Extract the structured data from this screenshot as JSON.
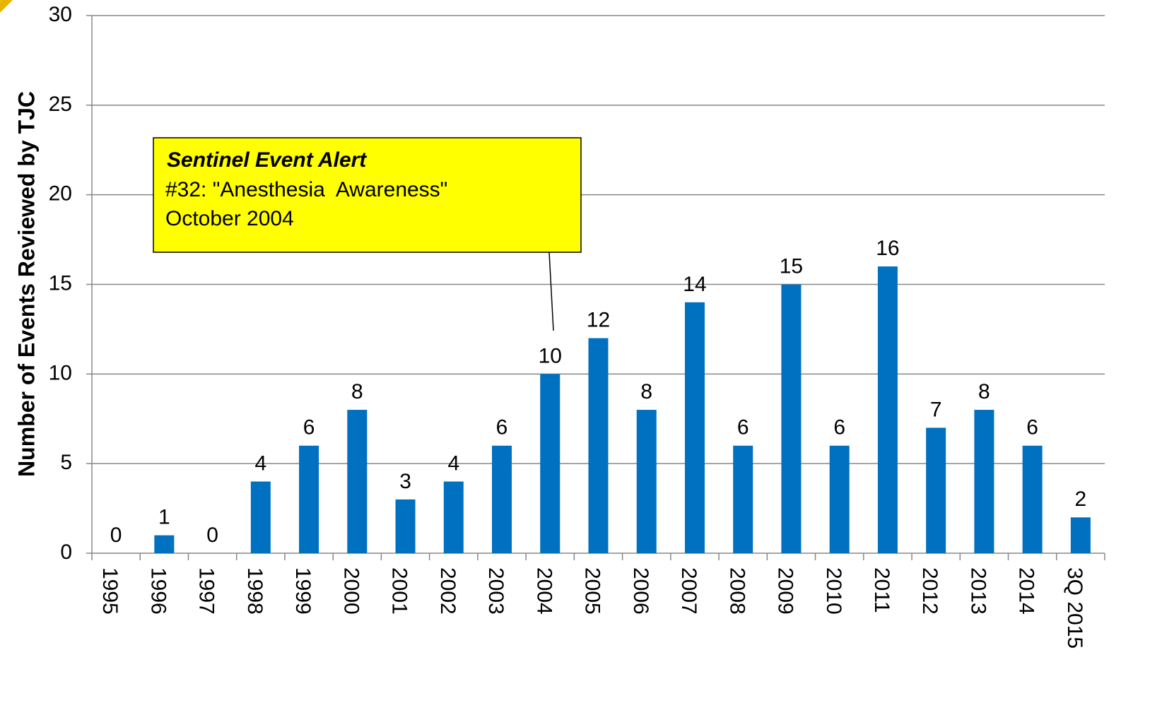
{
  "chart_data": {
    "type": "bar",
    "y_label": "Number of Events Reviewed by TJC",
    "categories": [
      "1995",
      "1996",
      "1997",
      "1998",
      "1999",
      "2000",
      "2001",
      "2002",
      "2003",
      "2004",
      "2005",
      "2006",
      "2007",
      "2008",
      "2009",
      "2010",
      "2011",
      "2012",
      "2013",
      "2014",
      "3Q 2015"
    ],
    "values": [
      0,
      1,
      0,
      4,
      6,
      8,
      3,
      4,
      6,
      10,
      12,
      8,
      14,
      6,
      15,
      6,
      16,
      7,
      8,
      6,
      2
    ],
    "color": "#0070c0",
    "ylim": [
      0,
      30
    ],
    "yticks": [
      0,
      5,
      10,
      15,
      20,
      25,
      30
    ],
    "grid": true,
    "annotation": {
      "title": "Sentinel Event Alert",
      "lines": [
        "#32: \"Anesthesia  Awareness\"",
        "October 2004"
      ]
    }
  }
}
